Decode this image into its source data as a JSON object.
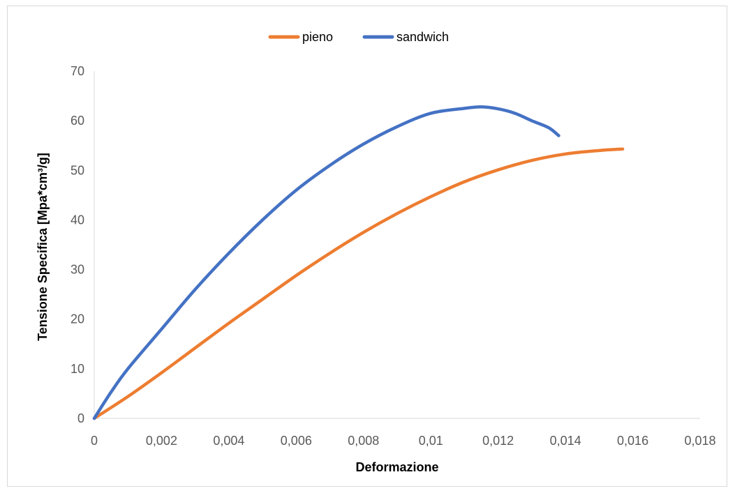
{
  "chart_data": {
    "type": "line",
    "title": "",
    "xlabel": "Deformazione",
    "ylabel": "Tensione Specifica [Mpa*cm³/g]",
    "xlim": [
      0,
      0.018
    ],
    "ylim": [
      0,
      70
    ],
    "x_ticks": [
      "0",
      "0,002",
      "0,004",
      "0,006",
      "0,008",
      "0,01",
      "0,012",
      "0,014",
      "0,016",
      "0,018"
    ],
    "y_ticks": [
      "0",
      "10",
      "20",
      "30",
      "40",
      "50",
      "60",
      "70"
    ],
    "grid": false,
    "legend_position": "top",
    "series": [
      {
        "name": "pieno",
        "color": "#ED7D31",
        "points": [
          [
            0,
            0
          ],
          [
            0.001,
            4.4
          ],
          [
            0.002,
            9.2
          ],
          [
            0.003,
            14.2
          ],
          [
            0.004,
            19.2
          ],
          [
            0.005,
            24.0
          ],
          [
            0.006,
            28.8
          ],
          [
            0.007,
            33.3
          ],
          [
            0.008,
            37.5
          ],
          [
            0.009,
            41.3
          ],
          [
            0.01,
            44.7
          ],
          [
            0.011,
            47.7
          ],
          [
            0.012,
            50.1
          ],
          [
            0.013,
            52.0
          ],
          [
            0.014,
            53.3
          ],
          [
            0.015,
            54.0
          ],
          [
            0.0157,
            54.3
          ]
        ]
      },
      {
        "name": "sandwich",
        "color": "#4472C4",
        "points": [
          [
            0,
            0
          ],
          [
            0.0005,
            5.3
          ],
          [
            0.001,
            10.0
          ],
          [
            0.002,
            18.0
          ],
          [
            0.003,
            26.0
          ],
          [
            0.004,
            33.3
          ],
          [
            0.005,
            40.0
          ],
          [
            0.006,
            46.0
          ],
          [
            0.007,
            51.0
          ],
          [
            0.008,
            55.3
          ],
          [
            0.009,
            58.8
          ],
          [
            0.01,
            61.5
          ],
          [
            0.011,
            62.5
          ],
          [
            0.0115,
            62.8
          ],
          [
            0.012,
            62.4
          ],
          [
            0.0125,
            61.5
          ],
          [
            0.013,
            60.0
          ],
          [
            0.0135,
            58.6
          ],
          [
            0.0138,
            57.0
          ]
        ]
      }
    ]
  }
}
